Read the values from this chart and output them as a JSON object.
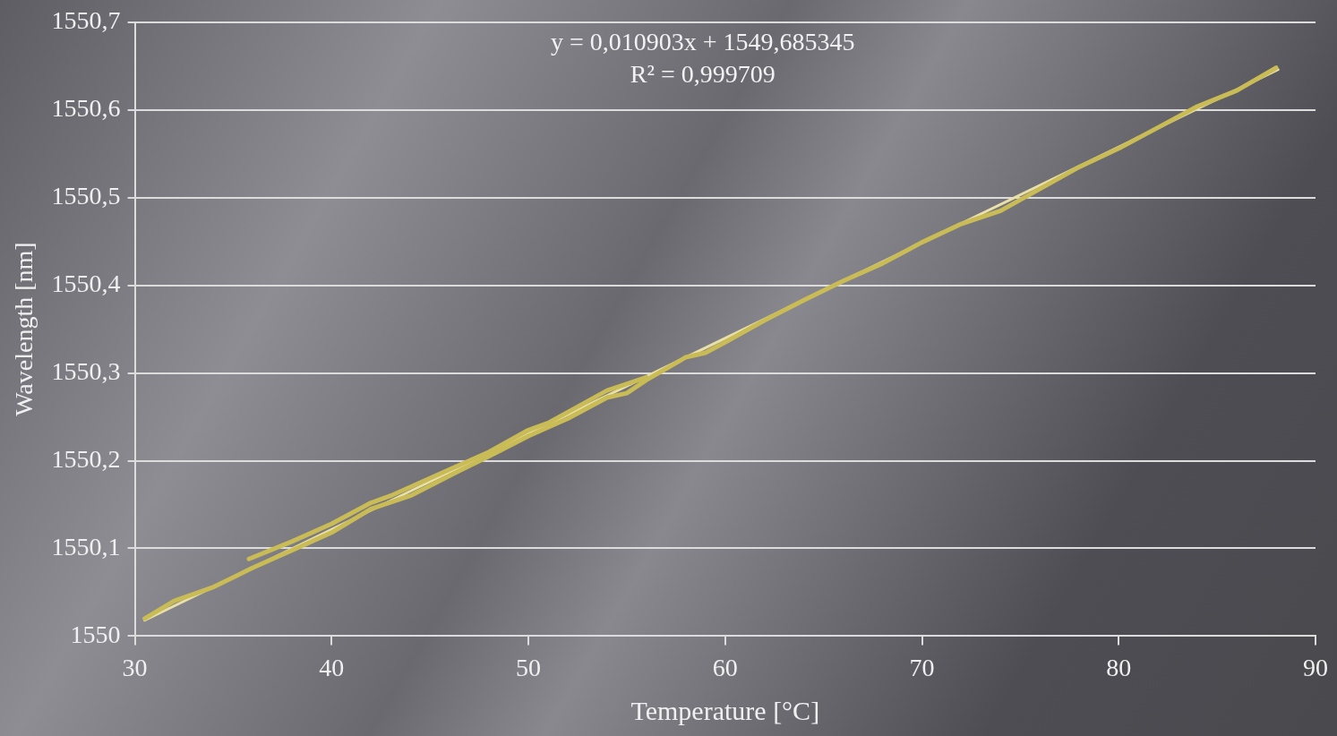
{
  "chart_data": {
    "type": "line",
    "xlabel": "Temperature [°C]",
    "ylabel": "Wavelength [nm]",
    "annotations": [
      "y = 0,010903x + 1549,685345",
      "R² = 0,999709"
    ],
    "xlim": [
      30,
      90
    ],
    "xticks": [
      30,
      40,
      50,
      60,
      70,
      80,
      90
    ],
    "ylim": [
      1550,
      1550.7
    ],
    "yticks": [
      1550,
      {
        "value": 1550.1,
        "label": "1550,1"
      },
      {
        "value": 1550.2,
        "label": "1550,2"
      },
      {
        "value": 1550.3,
        "label": "1550,3"
      },
      {
        "value": 1550.4,
        "label": "1550,4"
      },
      {
        "value": 1550.5,
        "label": "1550,5"
      },
      {
        "value": 1550.6,
        "label": "1550,6"
      },
      {
        "value": 1550.7,
        "label": "1550,7"
      }
    ],
    "grid": "y",
    "marker": "none",
    "line_style": "solid",
    "legend": false,
    "series": [
      {
        "color": "#c9bb55",
        "x": [
          30.5,
          32,
          34,
          36,
          38,
          40,
          42,
          44,
          46,
          48,
          50,
          52,
          54,
          55,
          56,
          58,
          59,
          60,
          62,
          64,
          66,
          68,
          70,
          72,
          74,
          76,
          78,
          80,
          82,
          84,
          86,
          88
        ],
        "values": [
          1550.02,
          1550.04,
          1550.056,
          1550.078,
          1550.098,
          1550.118,
          1550.145,
          1550.16,
          1550.183,
          1550.205,
          1550.228,
          1550.248,
          1550.272,
          1550.277,
          1550.292,
          1550.318,
          1550.323,
          1550.335,
          1550.36,
          1550.383,
          1550.405,
          1550.425,
          1550.449,
          1550.47,
          1550.485,
          1550.51,
          1550.535,
          1550.556,
          1550.58,
          1550.604,
          1550.622,
          1550.648
        ]
      },
      {
        "color": "#c9bb55",
        "x": [
          35.8,
          38,
          40,
          42,
          43,
          46,
          48,
          50,
          51,
          54,
          56
        ],
        "values": [
          1550.088,
          1550.108,
          1550.128,
          1550.152,
          1550.16,
          1550.19,
          1550.21,
          1550.235,
          1550.243,
          1550.28,
          1550.295
        ]
      },
      {
        "type": "line",
        "color": "#e8e0a8",
        "x": [
          30.5,
          88.1
        ],
        "values": [
          1550.018,
          1550.646
        ]
      }
    ]
  }
}
